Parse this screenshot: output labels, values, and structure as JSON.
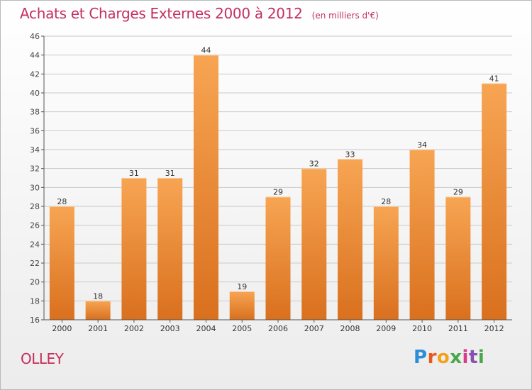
{
  "header": {
    "title": "Achats et Charges Externes 2000 à 2012",
    "subtitle": "(en milliers d'€)"
  },
  "commune": "OLLEY",
  "logo": {
    "text": "Proxiti"
  },
  "colors": {
    "title": "#c42f5d",
    "bar_top": "#f7a553",
    "bar_bottom": "#d9701e",
    "grid": "#c9c9c9",
    "axis": "#555555"
  },
  "chart_data": {
    "type": "bar",
    "categories": [
      "2000",
      "2001",
      "2002",
      "2003",
      "2004",
      "2005",
      "2006",
      "2007",
      "2008",
      "2009",
      "2010",
      "2011",
      "2012"
    ],
    "values": [
      28,
      18,
      31,
      31,
      44,
      19,
      29,
      32,
      33,
      28,
      34,
      29,
      41
    ],
    "ylim": [
      16,
      46
    ],
    "yticks": [
      16,
      18,
      20,
      22,
      24,
      26,
      28,
      30,
      32,
      34,
      36,
      38,
      40,
      42,
      44,
      46
    ],
    "grid": true,
    "data_labels": true
  }
}
